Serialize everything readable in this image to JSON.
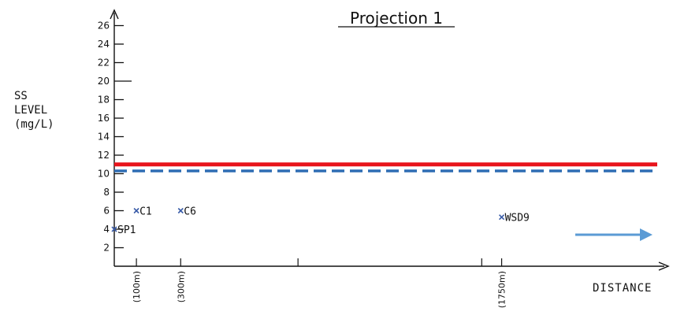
{
  "chart_data": {
    "type": "scatter",
    "title": "Projection 1",
    "ylabel_lines": [
      "SS",
      "LEVEL",
      "(mg/L)"
    ],
    "xlabel": "DISTANCE",
    "ylim": [
      0,
      27
    ],
    "yticks": [
      2,
      4,
      6,
      8,
      10,
      12,
      14,
      16,
      18,
      20,
      22,
      24,
      26
    ],
    "xlim": [
      0,
      3000
    ],
    "distance_markers": [
      {
        "x": 100,
        "label": "(100m)"
      },
      {
        "x": 300,
        "label": "(300m)"
      },
      {
        "x": 1750,
        "label": "(1750m)"
      }
    ],
    "points": [
      {
        "name": "SP1",
        "x": 0,
        "y": 4
      },
      {
        "name": "C1",
        "x": 100,
        "y": 6
      },
      {
        "name": "C6",
        "x": 300,
        "y": 6
      },
      {
        "name": "WSD9",
        "x": 1750,
        "y": 5.3
      }
    ],
    "reference_lines": [
      {
        "y": 11,
        "style": "solid",
        "color": "#e8141b"
      },
      {
        "y": 10.3,
        "style": "dashed",
        "color": "#2e6db4"
      }
    ],
    "colors": {
      "axis": "#111111",
      "point": "#3a5ca8",
      "arrow": "#5b9bd5"
    }
  }
}
